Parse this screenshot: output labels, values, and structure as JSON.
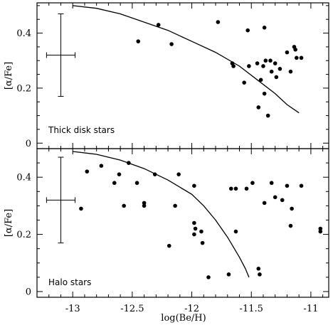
{
  "chart_data": [
    {
      "type": "scatter",
      "panel": "top",
      "annotation": "Thick disk stars",
      "xlabel": "log(Be/H)",
      "ylabel": "[α/Fe]",
      "xlim": [
        -13.3,
        -10.85
      ],
      "ylim": [
        -0.02,
        0.51
      ],
      "x_ticks": [
        "-13",
        "-12.5",
        "-12",
        "-11.5",
        "-11"
      ],
      "y_ticks": [
        "0",
        "0.2",
        "0.4"
      ],
      "error_bar": {
        "x": -13.1,
        "y": 0.32,
        "xerr": 0.12,
        "yerr": 0.15
      },
      "points": [
        {
          "x": -12.45,
          "y": 0.37
        },
        {
          "x": -12.28,
          "y": 0.43
        },
        {
          "x": -12.17,
          "y": 0.36
        },
        {
          "x": -11.78,
          "y": 0.44
        },
        {
          "x": -11.66,
          "y": 0.29
        },
        {
          "x": -11.65,
          "y": 0.28
        },
        {
          "x": -11.56,
          "y": 0.22
        },
        {
          "x": -11.53,
          "y": 0.41
        },
        {
          "x": -11.52,
          "y": 0.28
        },
        {
          "x": -11.45,
          "y": 0.29
        },
        {
          "x": -11.44,
          "y": 0.13
        },
        {
          "x": -11.42,
          "y": 0.23
        },
        {
          "x": -11.4,
          "y": 0.28
        },
        {
          "x": -11.39,
          "y": 0.42
        },
        {
          "x": -11.39,
          "y": 0.18
        },
        {
          "x": -11.38,
          "y": 0.3
        },
        {
          "x": -11.36,
          "y": 0.1
        },
        {
          "x": -11.34,
          "y": 0.3
        },
        {
          "x": -11.33,
          "y": 0.26
        },
        {
          "x": -11.3,
          "y": 0.29
        },
        {
          "x": -11.29,
          "y": 0.24
        },
        {
          "x": -11.26,
          "y": 0.27
        },
        {
          "x": -11.2,
          "y": 0.33
        },
        {
          "x": -11.17,
          "y": 0.26
        },
        {
          "x": -11.14,
          "y": 0.35
        },
        {
          "x": -11.13,
          "y": 0.34
        },
        {
          "x": -11.12,
          "y": 0.31
        },
        {
          "x": -11.08,
          "y": 0.31
        }
      ],
      "curve": [
        {
          "x": -13.0,
          "y": 0.5
        },
        {
          "x": -12.8,
          "y": 0.49
        },
        {
          "x": -12.6,
          "y": 0.47
        },
        {
          "x": -12.4,
          "y": 0.44
        },
        {
          "x": -12.2,
          "y": 0.41
        },
        {
          "x": -12.0,
          "y": 0.37
        },
        {
          "x": -11.8,
          "y": 0.33
        },
        {
          "x": -11.6,
          "y": 0.28
        },
        {
          "x": -11.45,
          "y": 0.23
        },
        {
          "x": -11.3,
          "y": 0.18
        },
        {
          "x": -11.2,
          "y": 0.14
        },
        {
          "x": -11.1,
          "y": 0.11
        }
      ]
    },
    {
      "type": "scatter",
      "panel": "bottom",
      "annotation": "Halo stars",
      "xlabel": "log(Be/H)",
      "ylabel": "[α/Fe]",
      "xlim": [
        -13.3,
        -10.85
      ],
      "ylim": [
        -0.02,
        0.5
      ],
      "x_ticks": [
        "-13",
        "-12.5",
        "-12",
        "-11.5",
        "-11"
      ],
      "y_ticks": [
        "0",
        "0.2",
        "0.4"
      ],
      "error_bar": {
        "x": -13.1,
        "y": 0.32,
        "xerr": 0.12,
        "yerr": 0.15
      },
      "points": [
        {
          "x": -12.93,
          "y": 0.29
        },
        {
          "x": -12.88,
          "y": 0.42
        },
        {
          "x": -12.76,
          "y": 0.44
        },
        {
          "x": -12.65,
          "y": 0.38
        },
        {
          "x": -12.61,
          "y": 0.41
        },
        {
          "x": -12.57,
          "y": 0.3
        },
        {
          "x": -12.53,
          "y": 0.45
        },
        {
          "x": -12.46,
          "y": 0.38
        },
        {
          "x": -12.4,
          "y": 0.31
        },
        {
          "x": -12.4,
          "y": 0.3
        },
        {
          "x": -12.31,
          "y": 0.41
        },
        {
          "x": -12.19,
          "y": 0.16
        },
        {
          "x": -12.14,
          "y": 0.3
        },
        {
          "x": -12.11,
          "y": 0.41
        },
        {
          "x": -11.98,
          "y": 0.37
        },
        {
          "x": -11.98,
          "y": 0.24
        },
        {
          "x": -11.98,
          "y": 0.2
        },
        {
          "x": -11.97,
          "y": 0.22
        },
        {
          "x": -11.92,
          "y": 0.21
        },
        {
          "x": -11.91,
          "y": 0.17
        },
        {
          "x": -11.86,
          "y": 0.05
        },
        {
          "x": -11.69,
          "y": 0.06
        },
        {
          "x": -11.67,
          "y": 0.36
        },
        {
          "x": -11.63,
          "y": 0.36
        },
        {
          "x": -11.63,
          "y": 0.21
        },
        {
          "x": -11.54,
          "y": 0.36
        },
        {
          "x": -11.49,
          "y": 0.38
        },
        {
          "x": -11.44,
          "y": 0.08
        },
        {
          "x": -11.43,
          "y": 0.06
        },
        {
          "x": -11.39,
          "y": 0.31
        },
        {
          "x": -11.33,
          "y": 0.38
        },
        {
          "x": -11.3,
          "y": 0.33
        },
        {
          "x": -11.24,
          "y": 0.32
        },
        {
          "x": -11.2,
          "y": 0.37
        },
        {
          "x": -11.17,
          "y": 0.23
        },
        {
          "x": -11.16,
          "y": 0.29
        },
        {
          "x": -11.08,
          "y": 0.37
        },
        {
          "x": -10.92,
          "y": 0.22
        },
        {
          "x": -10.92,
          "y": 0.21
        }
      ],
      "curve": [
        {
          "x": -13.0,
          "y": 0.49
        },
        {
          "x": -12.8,
          "y": 0.48
        },
        {
          "x": -12.6,
          "y": 0.46
        },
        {
          "x": -12.4,
          "y": 0.43
        },
        {
          "x": -12.2,
          "y": 0.39
        },
        {
          "x": -12.0,
          "y": 0.34
        },
        {
          "x": -11.9,
          "y": 0.3
        },
        {
          "x": -11.8,
          "y": 0.25
        },
        {
          "x": -11.7,
          "y": 0.19
        },
        {
          "x": -11.6,
          "y": 0.12
        },
        {
          "x": -11.55,
          "y": 0.08
        },
        {
          "x": -11.52,
          "y": 0.05
        }
      ]
    }
  ]
}
